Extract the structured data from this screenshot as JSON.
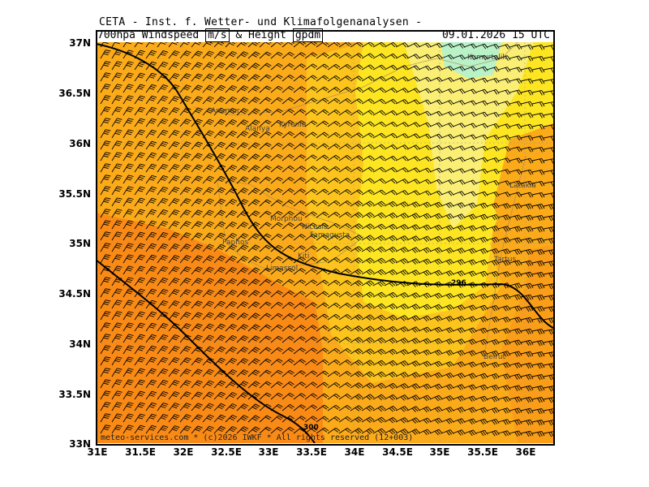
{
  "header": {
    "title": "CETA - Inst. f. Wetter- und Klimafolgenanalysen -",
    "variable": "700hpa Windspeed",
    "unit1": "m/s",
    "and_text": "& Height",
    "unit2": "gpdm",
    "datetime": "09.01.2026 15 UTC"
  },
  "axes": {
    "lat_ticks": [
      "37N",
      "36.5N",
      "36N",
      "35.5N",
      "35N",
      "34.5N",
      "34N",
      "33.5N",
      "33N"
    ],
    "lon_ticks": [
      "31E",
      "31.5E",
      "32E",
      "32.5E",
      "33E",
      "33.5E",
      "34E",
      "34.5E",
      "35E",
      "35.5E",
      "36E"
    ]
  },
  "cities": [
    "Kumurtalik",
    "Anamur",
    "Alanya",
    "Kyrenia",
    "Latakia",
    "Morphou",
    "Nicosia",
    "Famagusta",
    "Paphos",
    "Kiti",
    "Limassol",
    "Tartus",
    "Beirut"
  ],
  "contour_labels": [
    "296",
    "300"
  ],
  "footer": "meteo-services.com * (c)2026 IWKF * All rights reserved (12+003)",
  "colors": {
    "deep_orange": "#f98a16",
    "orange": "#fbaa1a",
    "light_orange": "#fcc41c",
    "yellow": "#fde522",
    "light_yellow": "#f9f08a",
    "light_green": "#b9f2c6"
  }
}
